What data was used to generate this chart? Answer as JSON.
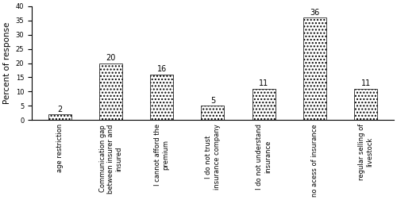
{
  "categories": [
    "age restriction",
    "Communication gap\nbetween insurer and\ninsured",
    "I cannot afford the\npremium",
    "I do not trust\ninsurance company",
    "I do not understand\ninsurance",
    "no acess of insurance",
    "regular selling of\nlivestock"
  ],
  "values": [
    2,
    20,
    16,
    5,
    11,
    36,
    11
  ],
  "ylabel": "Percent of response",
  "ylim": [
    0,
    40
  ],
  "yticks": [
    0,
    5,
    10,
    15,
    20,
    25,
    30,
    35,
    40
  ],
  "bar_color": "white",
  "hatch": "....",
  "tick_fontsize": 6.0,
  "ylabel_fontsize": 7.5,
  "value_fontsize": 7,
  "bar_width": 0.45
}
